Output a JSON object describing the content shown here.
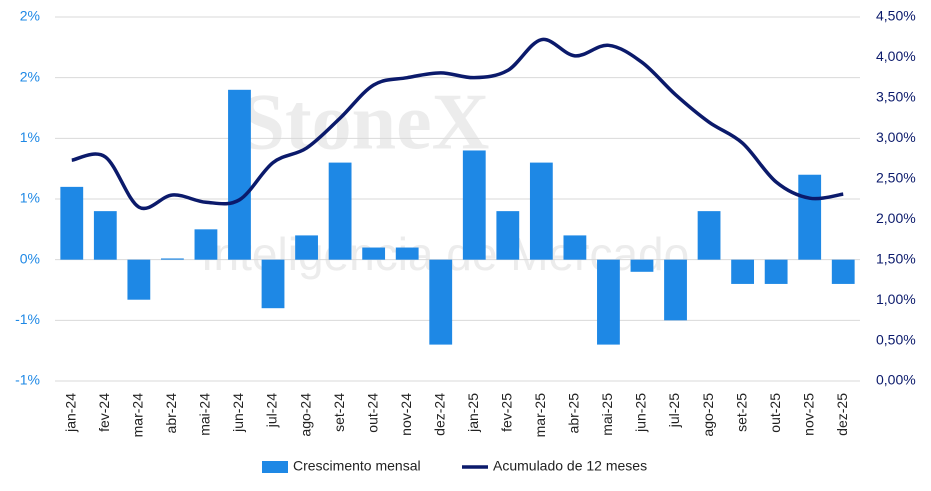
{
  "chart_data": {
    "type": "bar_line",
    "watermark": [
      "StoneX",
      "Inteligência de Mercado"
    ],
    "categories": [
      "jan-24",
      "fev-24",
      "mar-24",
      "abr-24",
      "mai-24",
      "jun-24",
      "jul-24",
      "ago-24",
      "set-24",
      "out-24",
      "nov-24",
      "dez-24",
      "jan-25",
      "fev-25",
      "mar-25",
      "abr-25",
      "mai-25",
      "jun-25",
      "jul-25",
      "ago-25",
      "set-25",
      "out-25",
      "nov-25",
      "dez-25"
    ],
    "series": [
      {
        "name": "Crescimento mensal",
        "type": "bar",
        "color": "#1e88e5",
        "axis": "y",
        "values": [
          0.6,
          0.4,
          -0.33,
          0.01,
          0.25,
          1.4,
          -0.4,
          0.2,
          0.8,
          0.1,
          0.1,
          -0.7,
          0.9,
          0.4,
          0.8,
          0.2,
          -0.7,
          -0.1,
          -0.5,
          0.4,
          -0.2,
          -0.2,
          0.7,
          -0.2
        ]
      },
      {
        "name": "Acumulado de 12 meses",
        "type": "line",
        "color": "#0b1a6b",
        "axis": "y2",
        "values": [
          2.73,
          2.77,
          2.15,
          2.3,
          2.21,
          2.24,
          2.7,
          2.88,
          3.25,
          3.66,
          3.75,
          3.81,
          3.75,
          3.84,
          4.22,
          4.02,
          4.15,
          3.94,
          3.54,
          3.2,
          2.94,
          2.46,
          2.26,
          2.31
        ]
      }
    ],
    "ylim": [
      -1,
      2
    ],
    "yticks": [
      {
        "value": -1,
        "label": "-1%"
      },
      {
        "value": -0.5,
        "label": "-1%"
      },
      {
        "value": 0,
        "label": "0%"
      },
      {
        "value": 0.5,
        "label": "1%"
      },
      {
        "value": 1,
        "label": "1%"
      },
      {
        "value": 1.5,
        "label": "2%"
      },
      {
        "value": 2,
        "label": "2%"
      }
    ],
    "y2lim": [
      0,
      4.5
    ],
    "y2ticks": [
      {
        "value": 0,
        "label": "0,00%"
      },
      {
        "value": 0.5,
        "label": "0,50%"
      },
      {
        "value": 1,
        "label": "1,00%"
      },
      {
        "value": 1.5,
        "label": "1,50%"
      },
      {
        "value": 2,
        "label": "2,00%"
      },
      {
        "value": 2.5,
        "label": "2,50%"
      },
      {
        "value": 3,
        "label": "3,00%"
      },
      {
        "value": 3.5,
        "label": "3,50%"
      },
      {
        "value": 4,
        "label": "4,00%"
      },
      {
        "value": 4.5,
        "label": "4,50%"
      }
    ],
    "grid": true,
    "legend": "bottom"
  }
}
